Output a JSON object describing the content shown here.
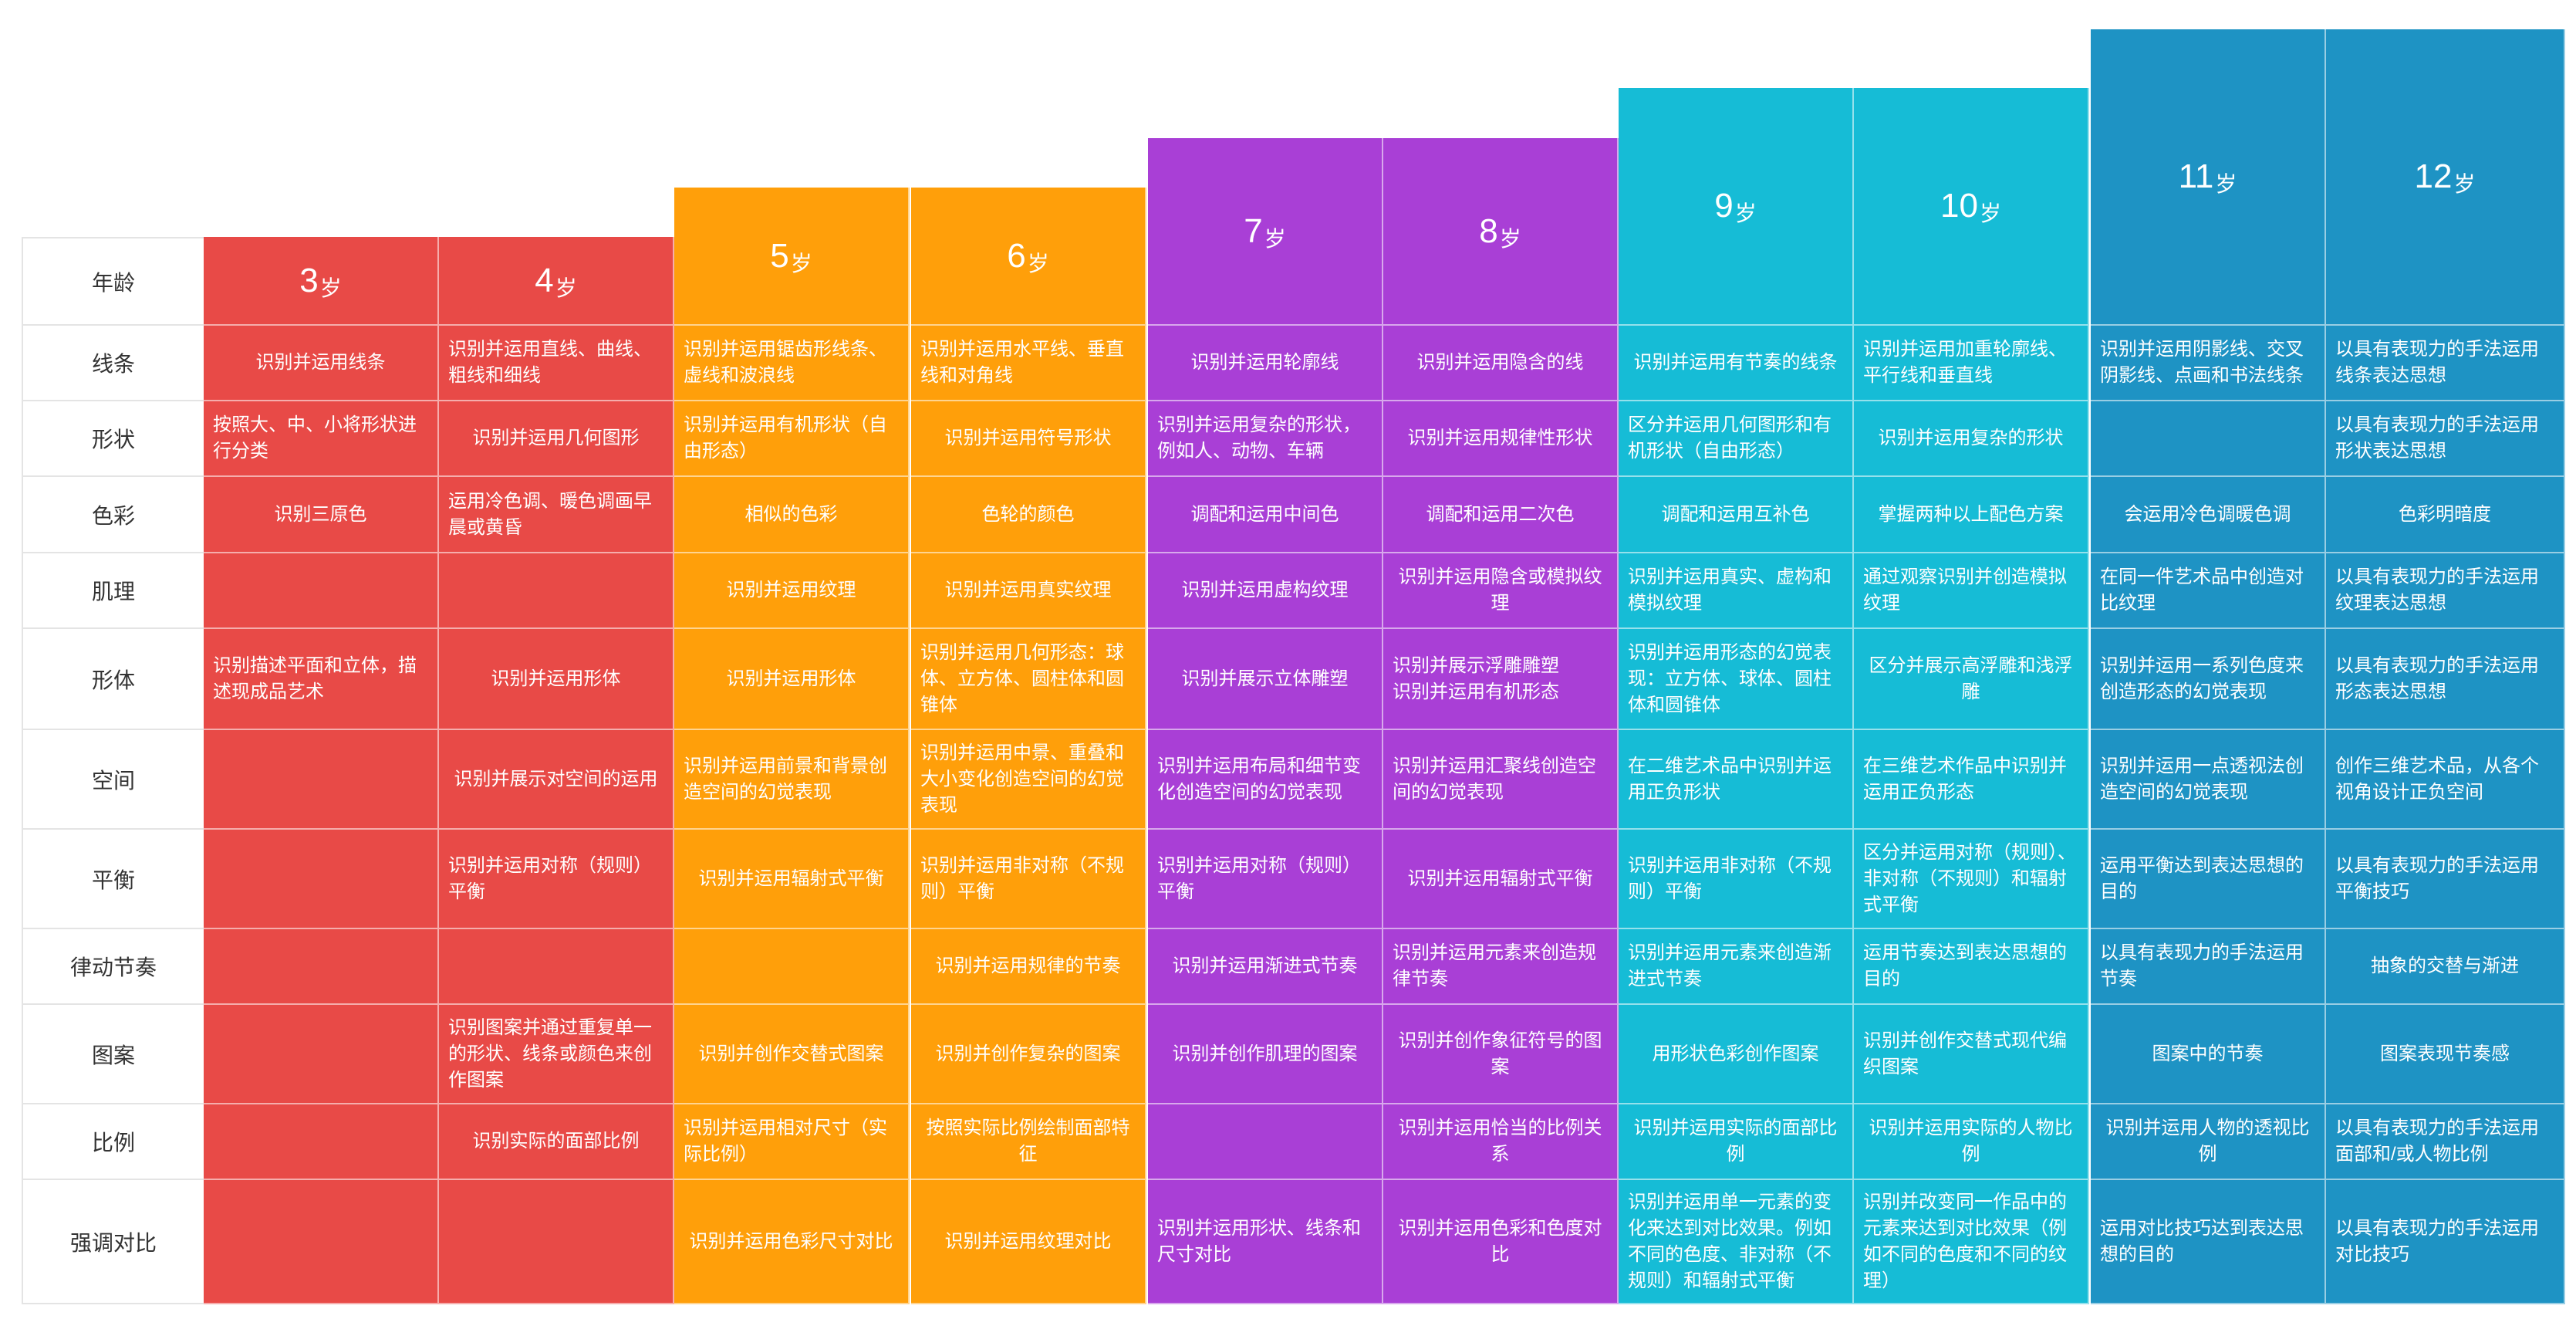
{
  "age_label": "年龄",
  "age_unit": "岁",
  "ages": [
    "3",
    "4",
    "5",
    "6",
    "7",
    "8",
    "9",
    "10",
    "11",
    "12"
  ],
  "colors": [
    "#E84A47",
    "#FF9F0A",
    "#A93FD6",
    "#16BCD6",
    "#1E93C4"
  ],
  "rows": [
    {
      "label": "线条",
      "cells": [
        "识别并运用线条",
        "识别并运用直线、曲线、粗线和细线",
        "识别并运用锯齿形线条、虚线和波浪线",
        "识别并运用水平线、垂直线和对角线",
        "识别并运用轮廓线",
        "识别并运用隐含的线",
        "识别并运用有节奏的线条",
        "识别并运用加重轮廓线、平行线和垂直线",
        "识别并运用阴影线、交叉阴影线、点画和书法线条",
        "以具有表现力的手法运用线条表达思想"
      ]
    },
    {
      "label": "形状",
      "cells": [
        "按照大、中、小将形状进行分类",
        "识别并运用几何图形",
        "识别并运用有机形状（自由形态）",
        "识别并运用符号形状",
        "识别并运用复杂的形状，例如人、动物、车辆",
        "识别并运用规律性形状",
        "区分并运用几何图形和有机形状（自由形态）",
        "识别并运用复杂的形状",
        "",
        "以具有表现力的手法运用形状表达思想"
      ]
    },
    {
      "label": "色彩",
      "cells": [
        "识别三原色",
        "运用冷色调、暖色调画早晨或黄昏",
        "相似的色彩",
        "色轮的颜色",
        "调配和运用中间色",
        "调配和运用二次色",
        "调配和运用互补色",
        "掌握两种以上配色方案",
        "会运用冷色调暖色调",
        "色彩明暗度"
      ]
    },
    {
      "label": "肌理",
      "cells": [
        "",
        "",
        "识别并运用纹理",
        "识别并运用真实纹理",
        "识别并运用虚构纹理",
        "识别并运用隐含或模拟纹理",
        "识别并运用真实、虚构和模拟纹理",
        "通过观察识别并创造模拟纹理",
        "在同一件艺术品中创造对比纹理",
        "以具有表现力的手法运用纹理表达思想"
      ]
    },
    {
      "label": "形体",
      "cells": [
        "识别描述平面和立体，描述现成品艺术",
        "识别并运用形体",
        "识别并运用形体",
        "识别并运用几何形态：球体、立方体、圆柱体和圆锥体",
        "识别并展示立体雕塑",
        "识别并展示浮雕雕塑\n识别并运用有机形态",
        "识别并运用形态的幻觉表现：立方体、球体、圆柱体和圆锥体",
        "区分并展示高浮雕和浅浮雕",
        "识别并运用一系列色度来创造形态的幻觉表现",
        "以具有表现力的手法运用形态表达思想"
      ]
    },
    {
      "label": "空间",
      "cells": [
        "",
        "识别并展示对空间的运用",
        "识别并运用前景和背景创造空间的幻觉表现",
        "识别并运用中景、重叠和大小变化创造空间的幻觉表现",
        "识别并运用布局和细节变化创造空间的幻觉表现",
        "识别并运用汇聚线创造空间的幻觉表现",
        "在二维艺术品中识别并运用正负形状",
        "在三维艺术作品中识别并运用正负形态",
        "识别并运用一点透视法创造空间的幻觉表现",
        "创作三维艺术品，从各个视角设计正负空间"
      ]
    },
    {
      "label": "平衡",
      "cells": [
        "",
        "识别并运用对称（规则）平衡",
        "识别并运用辐射式平衡",
        "识别并运用非对称（不规则）平衡",
        "识别并运用对称（规则）平衡",
        "识别并运用辐射式平衡",
        "识别并运用非对称（不规则）平衡",
        "区分并运用对称（规则）、非对称（不规则）和辐射式平衡",
        "运用平衡达到表达思想的目的",
        "以具有表现力的手法运用平衡技巧"
      ]
    },
    {
      "label": "律动节奏",
      "cells": [
        "",
        "",
        "",
        "识别并运用规律的节奏",
        "识别并运用渐进式节奏",
        "识别并运用元素来创造规律节奏",
        "识别并运用元素来创造渐进式节奏",
        "运用节奏达到表达思想的目的",
        "以具有表现力的手法运用节奏",
        "抽象的交替与渐进"
      ]
    },
    {
      "label": "图案",
      "cells": [
        "",
        "识别图案并通过重复单一的形状、线条或颜色来创作图案",
        "识别并创作交替式图案",
        "识别并创作复杂的图案",
        "识别并创作肌理的图案",
        "识别并创作象征符号的图案",
        "用形状色彩创作图案",
        "识别并创作交替式现代编织图案",
        "图案中的节奏",
        "图案表现节奏感"
      ]
    },
    {
      "label": "比例",
      "cells": [
        "",
        "识别实际的面部比例",
        "识别并运用相对尺寸（实际比例）",
        "按照实际比例绘制面部特征",
        "",
        "识别并运用恰当的比例关系",
        "识别并运用实际的面部比例",
        "识别并运用实际的人物比例",
        "识别并运用人物的透视比例",
        "以具有表现力的手法运用面部和/或人物比例"
      ]
    },
    {
      "label": "强调对比",
      "cells": [
        "",
        "",
        "识别并运用色彩尺寸对比",
        "识别并运用纹理对比",
        "识别并运用形状、线条和尺寸对比",
        "识别并运用色彩和色度对比",
        "识别并运用单一元素的变化来达到对比效果。例如不同的色度、非对称（不规则）和辐射式平衡",
        "识别并改变同一作品中的元素来达到对比效果（例如不同的色度和不同的纹理）",
        "运用对比技巧达到表达思想的目的",
        "以具有表现力的手法运用对比技巧"
      ]
    }
  ]
}
